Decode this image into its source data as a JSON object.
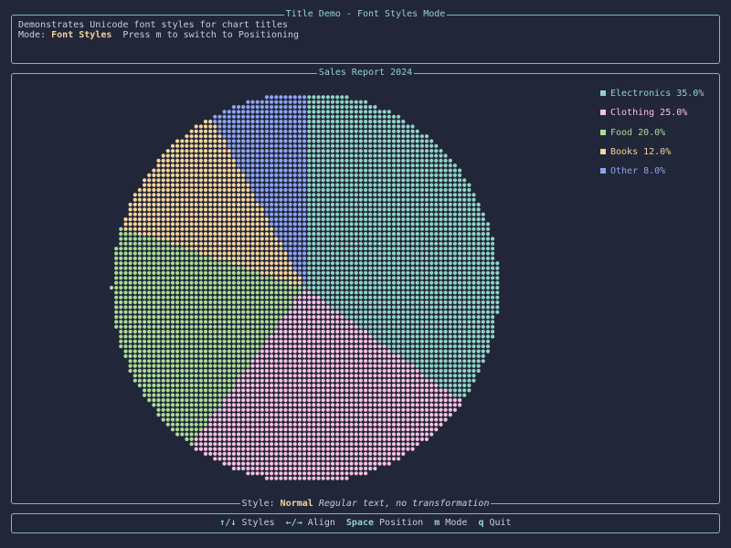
{
  "top_panel": {
    "title": "Title Demo - Font Styles Mode",
    "description": "Demonstrates Unicode font styles for chart titles",
    "mode_label": "Mode:",
    "mode_value": "Font Styles",
    "mode_hint": "Press m to switch to Positioning"
  },
  "chart_panel": {
    "title": "Sales Report 2024",
    "footer_style_label": "Style:",
    "footer_style_value": "Normal",
    "footer_style_desc": "Regular text, no transformation"
  },
  "chart_data": {
    "type": "pie",
    "title": "Sales Report 2024",
    "legend_position": "top-right",
    "slices": [
      {
        "label": "Electronics 35.0%",
        "value": 35.0,
        "color": "#8fd3c4"
      },
      {
        "label": "Clothing 25.0%",
        "value": 25.0,
        "color": "#f7c0e0"
      },
      {
        "label": "Food 20.0%",
        "value": 20.0,
        "color": "#a9dc96"
      },
      {
        "label": "Books 12.0%",
        "value": 12.0,
        "color": "#f4d49a"
      },
      {
        "label": "Other 8.0%",
        "value": 8.0,
        "color": "#8ca4f0"
      }
    ]
  },
  "help_bar": {
    "items": [
      {
        "key": "↑/↓",
        "label": "Styles"
      },
      {
        "key": "←/→",
        "label": "Align"
      },
      {
        "key": "Space",
        "label": "Position"
      },
      {
        "key": "m",
        "label": "Mode"
      },
      {
        "key": "q",
        "label": "Quit"
      }
    ]
  }
}
